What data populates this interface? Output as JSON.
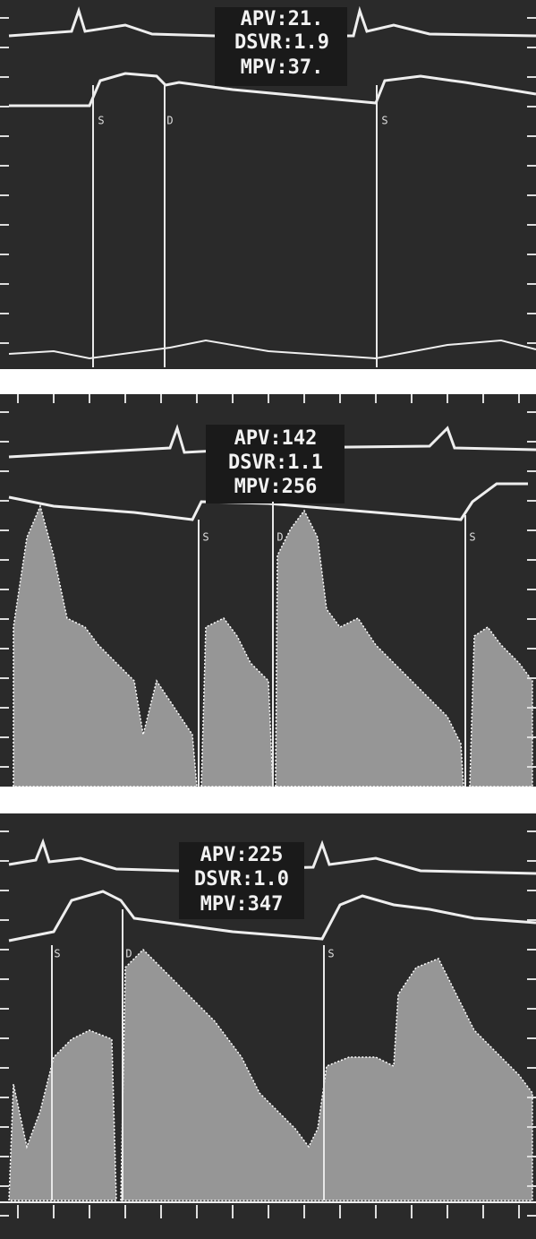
{
  "panels": [
    {
      "readouts": [
        "APV:21.",
        "DSVR:1.9",
        "MPV:37."
      ],
      "markers": [
        "S",
        "D",
        "S"
      ]
    },
    {
      "readouts": [
        "APV:142",
        "DSVR:1.1",
        "MPV:256"
      ],
      "markers": [
        "S",
        "D",
        "S"
      ]
    },
    {
      "readouts": [
        "APV:225",
        "DSVR:1.0",
        "MPV:347"
      ],
      "markers": [
        "S",
        "D",
        "S"
      ]
    }
  ]
}
